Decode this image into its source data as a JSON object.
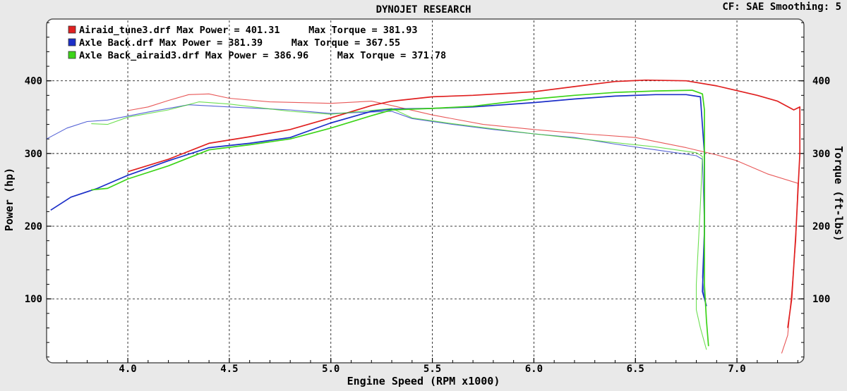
{
  "chart_data": {
    "type": "line",
    "title": "DYNOJET RESEARCH",
    "info": "CF: SAE  Smoothing: 5",
    "xlabel": "Engine Speed (RPM x1000)",
    "ylabel": "Power (hp)",
    "y2label": "Torque (ft-lbs)",
    "xlim": [
      3.6,
      7.33
    ],
    "ylim": [
      12,
      485
    ],
    "x_ticks": [
      "4.0",
      "4.5",
      "5.0",
      "5.5",
      "6.0",
      "6.5",
      "7.0"
    ],
    "y_ticks": [
      "100",
      "200",
      "300",
      "400"
    ],
    "y2_ticks": [
      "100",
      "200",
      "300",
      "400"
    ],
    "grid": true,
    "legend_position": "top-left",
    "series": [
      {
        "name": "Airaid_tune3.drf Max Power = 401.31     Max Torque = 381.93",
        "color": "#e02020",
        "power": [
          [
            4.0,
            275
          ],
          [
            4.2,
            292
          ],
          [
            4.4,
            314
          ],
          [
            4.6,
            323
          ],
          [
            4.8,
            333
          ],
          [
            5.0,
            349
          ],
          [
            5.2,
            366
          ],
          [
            5.3,
            372
          ],
          [
            5.5,
            378
          ],
          [
            5.7,
            380
          ],
          [
            6.0,
            385
          ],
          [
            6.2,
            392
          ],
          [
            6.4,
            399
          ],
          [
            6.55,
            401
          ],
          [
            6.75,
            400
          ],
          [
            6.9,
            393
          ],
          [
            7.1,
            380
          ],
          [
            7.2,
            372
          ],
          [
            7.28,
            360
          ],
          [
            7.31,
            364
          ],
          [
            7.31,
            300
          ],
          [
            7.29,
            190
          ],
          [
            7.27,
            100
          ],
          [
            7.25,
            60
          ]
        ],
        "torque": [
          [
            4.0,
            359
          ],
          [
            4.1,
            364
          ],
          [
            4.2,
            373
          ],
          [
            4.3,
            381
          ],
          [
            4.4,
            382
          ],
          [
            4.5,
            376
          ],
          [
            4.7,
            371
          ],
          [
            5.0,
            369
          ],
          [
            5.2,
            372
          ],
          [
            5.3,
            366
          ],
          [
            5.5,
            353
          ],
          [
            5.75,
            340
          ],
          [
            6.0,
            333
          ],
          [
            6.25,
            327
          ],
          [
            6.5,
            322
          ],
          [
            6.75,
            308
          ],
          [
            6.9,
            298
          ],
          [
            7.0,
            290
          ],
          [
            7.15,
            272
          ],
          [
            7.3,
            259
          ],
          [
            7.29,
            180
          ],
          [
            7.27,
            110
          ],
          [
            7.25,
            50
          ],
          [
            7.22,
            25
          ]
        ]
      },
      {
        "name": "Axle Back.drf Max Power = 381.39     Max Torque = 367.55",
        "color": "#1c2fc8",
        "power": [
          [
            3.62,
            222
          ],
          [
            3.72,
            240
          ],
          [
            3.85,
            252
          ],
          [
            4.0,
            270
          ],
          [
            4.2,
            290
          ],
          [
            4.4,
            308
          ],
          [
            4.6,
            314
          ],
          [
            4.8,
            322
          ],
          [
            5.0,
            342
          ],
          [
            5.2,
            358
          ],
          [
            5.3,
            361
          ],
          [
            5.5,
            362
          ],
          [
            5.7,
            364
          ],
          [
            6.0,
            370
          ],
          [
            6.2,
            375
          ],
          [
            6.4,
            379
          ],
          [
            6.6,
            381
          ],
          [
            6.75,
            381
          ],
          [
            6.82,
            378
          ],
          [
            6.84,
            300
          ],
          [
            6.84,
            190
          ],
          [
            6.83,
            110
          ],
          [
            6.85,
            90
          ]
        ],
        "torque": [
          [
            3.6,
            320
          ],
          [
            3.7,
            335
          ],
          [
            3.8,
            344
          ],
          [
            3.9,
            346
          ],
          [
            4.1,
            357
          ],
          [
            4.3,
            367
          ],
          [
            4.5,
            364
          ],
          [
            4.8,
            360
          ],
          [
            5.0,
            355
          ],
          [
            5.3,
            358
          ],
          [
            5.4,
            348
          ],
          [
            5.6,
            340
          ],
          [
            5.8,
            333
          ],
          [
            6.0,
            327
          ],
          [
            6.2,
            322
          ],
          [
            6.4,
            313
          ],
          [
            6.6,
            305
          ],
          [
            6.8,
            297
          ],
          [
            6.83,
            292
          ],
          [
            6.84,
            200
          ],
          [
            6.83,
            130
          ],
          [
            6.84,
            100
          ]
        ]
      },
      {
        "name": "Axle Back_airaid3.drf Max Power = 386.96     Max Torque = 371.78",
        "color": "#3cd418",
        "power": [
          [
            3.82,
            250
          ],
          [
            3.9,
            252
          ],
          [
            4.0,
            265
          ],
          [
            4.2,
            283
          ],
          [
            4.4,
            305
          ],
          [
            4.6,
            312
          ],
          [
            4.8,
            320
          ],
          [
            5.0,
            335
          ],
          [
            5.2,
            352
          ],
          [
            5.3,
            360
          ],
          [
            5.5,
            362
          ],
          [
            5.7,
            365
          ],
          [
            6.0,
            375
          ],
          [
            6.2,
            380
          ],
          [
            6.4,
            384
          ],
          [
            6.6,
            386
          ],
          [
            6.78,
            387
          ],
          [
            6.83,
            382
          ],
          [
            6.84,
            360
          ],
          [
            6.84,
            280
          ],
          [
            6.84,
            190
          ],
          [
            6.84,
            120
          ],
          [
            6.85,
            70
          ],
          [
            6.86,
            35
          ]
        ],
        "torque": [
          [
            3.82,
            341
          ],
          [
            3.9,
            340
          ],
          [
            4.0,
            350
          ],
          [
            4.2,
            360
          ],
          [
            4.35,
            371
          ],
          [
            4.5,
            368
          ],
          [
            4.8,
            358
          ],
          [
            5.0,
            354
          ],
          [
            5.3,
            362
          ],
          [
            5.4,
            349
          ],
          [
            5.6,
            341
          ],
          [
            5.8,
            334
          ],
          [
            6.0,
            327
          ],
          [
            6.2,
            321
          ],
          [
            6.4,
            315
          ],
          [
            6.6,
            309
          ],
          [
            6.8,
            301
          ],
          [
            6.83,
            296
          ],
          [
            6.82,
            230
          ],
          [
            6.8,
            120
          ],
          [
            6.8,
            85
          ],
          [
            6.82,
            60
          ],
          [
            6.85,
            30
          ]
        ]
      }
    ]
  }
}
